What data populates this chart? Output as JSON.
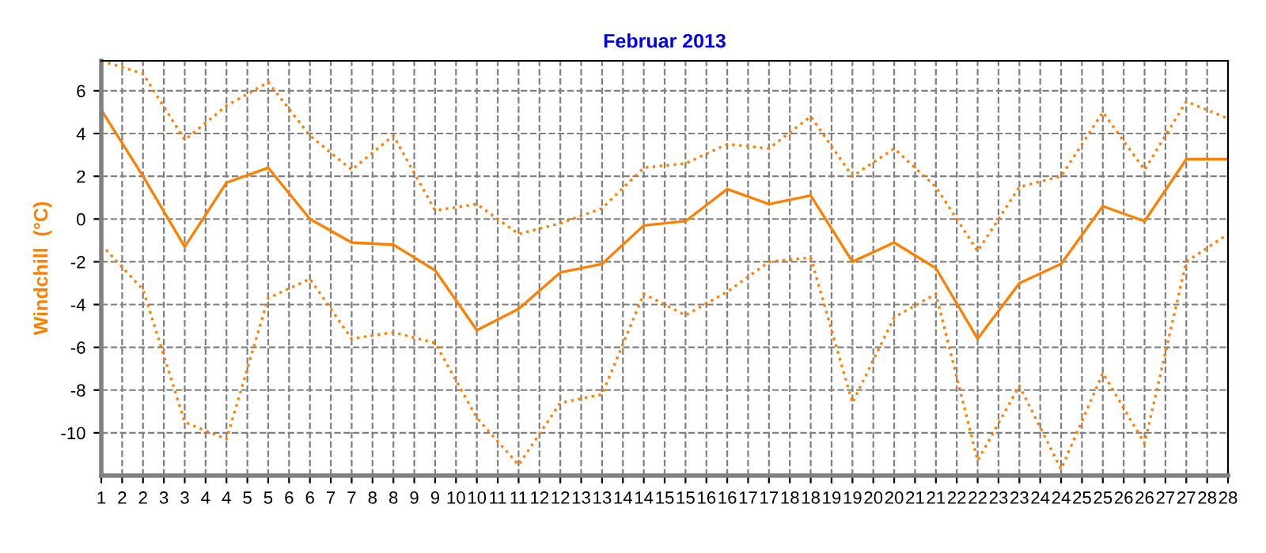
{
  "chart_data": {
    "type": "line",
    "title": "Februar 2013",
    "ylabel": "Windchill  (°C)",
    "x": [
      1,
      2,
      3,
      4,
      5,
      6,
      7,
      8,
      9,
      10,
      11,
      12,
      13,
      14,
      15,
      16,
      17,
      18,
      19,
      20,
      21,
      22,
      23,
      24,
      25,
      26,
      27,
      28
    ],
    "series": [
      {
        "color": "#ff8000",
        "line_style": "dotted",
        "values": [
          7.4,
          6.8,
          3.7,
          5.3,
          6.4,
          3.9,
          2.3,
          3.9,
          0.4,
          0.7,
          -0.7,
          -0.2,
          0.5,
          2.4,
          2.6,
          3.5,
          3.3,
          4.8,
          2.0,
          3.3,
          1.5,
          -1.5,
          1.5,
          2.0,
          5.0,
          2.3,
          5.5,
          4.7
        ]
      },
      {
        "color": "#ff8000",
        "line_style": "solid",
        "values": [
          5.1,
          2.0,
          -1.3,
          1.7,
          2.4,
          0.0,
          -1.1,
          -1.2,
          -2.4,
          -5.2,
          -4.2,
          -2.5,
          -2.1,
          -0.3,
          -0.1,
          1.4,
          0.7,
          1.1,
          -2.0,
          -1.1,
          -2.3,
          -5.6,
          -3.0,
          -2.1,
          0.6,
          -0.1,
          2.8,
          2.8
        ]
      },
      {
        "color": "#ff8000",
        "line_style": "dotted",
        "values": [
          -1.2,
          -3.3,
          -9.5,
          -10.3,
          -3.7,
          -2.8,
          -5.6,
          -5.3,
          -5.8,
          -9.3,
          -11.5,
          -8.6,
          -8.2,
          -3.5,
          -4.5,
          -3.4,
          -2.0,
          -1.8,
          -8.6,
          -4.6,
          -3.5,
          -11.3,
          -7.8,
          -11.7,
          -7.2,
          -10.5,
          -2.0,
          -0.7
        ]
      }
    ],
    "xlim": [
      1,
      28
    ],
    "xticks": [
      {
        "value": 1,
        "label": "1"
      },
      {
        "value": 1.5,
        "label": "2"
      },
      {
        "value": 2,
        "label": "2"
      },
      {
        "value": 2.5,
        "label": "3"
      },
      {
        "value": 3,
        "label": "3"
      },
      {
        "value": 3.5,
        "label": "4"
      },
      {
        "value": 4,
        "label": "4"
      },
      {
        "value": 4.5,
        "label": "5"
      },
      {
        "value": 5,
        "label": "5"
      },
      {
        "value": 5.5,
        "label": "6"
      },
      {
        "value": 6,
        "label": "6"
      },
      {
        "value": 6.5,
        "label": "7"
      },
      {
        "value": 7,
        "label": "7"
      },
      {
        "value": 7.5,
        "label": "8"
      },
      {
        "value": 8,
        "label": "8"
      },
      {
        "value": 8.5,
        "label": "9"
      },
      {
        "value": 9,
        "label": "9"
      },
      {
        "value": 9.5,
        "label": "10"
      },
      {
        "value": 10,
        "label": "10"
      },
      {
        "value": 10.5,
        "label": "11"
      },
      {
        "value": 11,
        "label": "11"
      },
      {
        "value": 11.5,
        "label": "12"
      },
      {
        "value": 12,
        "label": "12"
      },
      {
        "value": 12.5,
        "label": "13"
      },
      {
        "value": 13,
        "label": "13"
      },
      {
        "value": 13.5,
        "label": "14"
      },
      {
        "value": 14,
        "label": "14"
      },
      {
        "value": 14.5,
        "label": "15"
      },
      {
        "value": 15,
        "label": "15"
      },
      {
        "value": 15.5,
        "label": "16"
      },
      {
        "value": 16,
        "label": "16"
      },
      {
        "value": 16.5,
        "label": "17"
      },
      {
        "value": 17,
        "label": "17"
      },
      {
        "value": 17.5,
        "label": "18"
      },
      {
        "value": 18,
        "label": "18"
      },
      {
        "value": 18.5,
        "label": "19"
      },
      {
        "value": 19,
        "label": "19"
      },
      {
        "value": 19.5,
        "label": "20"
      },
      {
        "value": 20,
        "label": "20"
      },
      {
        "value": 20.5,
        "label": "21"
      },
      {
        "value": 21,
        "label": "21"
      },
      {
        "value": 21.5,
        "label": "22"
      },
      {
        "value": 22,
        "label": "22"
      },
      {
        "value": 22.5,
        "label": "23"
      },
      {
        "value": 23,
        "label": "23"
      },
      {
        "value": 23.5,
        "label": "24"
      },
      {
        "value": 24,
        "label": "24"
      },
      {
        "value": 24.5,
        "label": "25"
      },
      {
        "value": 25,
        "label": "25"
      },
      {
        "value": 25.5,
        "label": "26"
      },
      {
        "value": 26,
        "label": "26"
      },
      {
        "value": 26.5,
        "label": "27"
      },
      {
        "value": 27,
        "label": "27"
      },
      {
        "value": 27.5,
        "label": "28"
      },
      {
        "value": 28,
        "label": "28"
      }
    ],
    "ylim": [
      -12,
      7.4
    ],
    "yticks": [
      -10,
      -8,
      -6,
      -4,
      -2,
      0,
      2,
      4,
      6
    ],
    "grid": true,
    "marker": "none"
  }
}
